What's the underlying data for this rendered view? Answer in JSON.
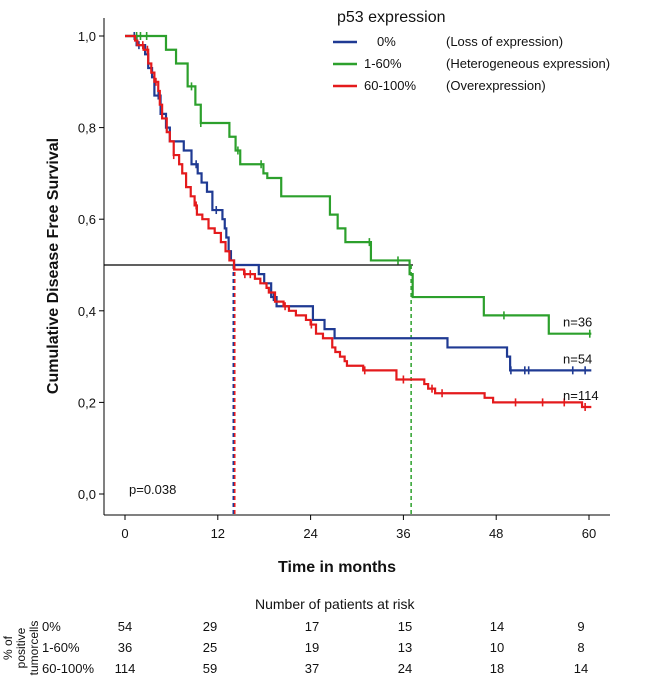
{
  "chart_data": {
    "type": "line",
    "subtype": "kaplan-meier-step",
    "ylabel": "Cumulative Disease Free Survival",
    "xlabel": "Time in months",
    "xlim": [
      0,
      60
    ],
    "ylim": [
      0,
      1
    ],
    "x_ticks": [
      0,
      12,
      24,
      36,
      48,
      60
    ],
    "y_ticks": [
      0,
      0.2,
      0.4,
      0.6,
      0.8,
      1.0
    ],
    "y_tick_labels": [
      "0,0",
      "0,2",
      "0,4",
      "0,6",
      "0,8",
      "1,0"
    ],
    "median_line_y": 0.5,
    "median_markers": [
      {
        "series": "0%",
        "x": 14
      },
      {
        "series": "60-100%",
        "x": 14
      },
      {
        "series": "1-60%",
        "x": 37
      }
    ],
    "p_value_text": "p=0.038",
    "legend": {
      "title": "p53 expression",
      "position": "top-right",
      "entries": [
        {
          "label": "0%",
          "description": "(Loss of expression)"
        },
        {
          "label": "1-60%",
          "description": "(Heterogeneous expression)"
        },
        {
          "label": "60-100%",
          "description": "(Overexpression)"
        }
      ]
    },
    "series": [
      {
        "name": "0%",
        "color": "#1f3a93",
        "end_label": "n=54",
        "steps": [
          [
            0,
            1.0
          ],
          [
            1.5,
            0.98
          ],
          [
            2.6,
            0.96
          ],
          [
            3.0,
            0.93
          ],
          [
            3.5,
            0.91
          ],
          [
            3.8,
            0.87
          ],
          [
            4.6,
            0.83
          ],
          [
            5.3,
            0.8
          ],
          [
            5.8,
            0.77
          ],
          [
            7.6,
            0.75
          ],
          [
            8.6,
            0.72
          ],
          [
            9.4,
            0.7
          ],
          [
            9.9,
            0.68
          ],
          [
            10.6,
            0.66
          ],
          [
            11.3,
            0.62
          ],
          [
            12.6,
            0.6
          ],
          [
            12.9,
            0.58
          ],
          [
            13.1,
            0.56
          ],
          [
            13.4,
            0.53
          ],
          [
            13.7,
            0.51
          ],
          [
            14.1,
            0.5
          ],
          [
            17.3,
            0.48
          ],
          [
            18.0,
            0.46
          ],
          [
            18.9,
            0.43
          ],
          [
            19.6,
            0.41
          ],
          [
            24.3,
            0.38
          ],
          [
            25.8,
            0.36
          ],
          [
            27.1,
            0.34
          ],
          [
            41.7,
            0.32
          ],
          [
            49.4,
            0.3
          ],
          [
            49.8,
            0.27
          ],
          [
            60.3,
            0.27
          ]
        ],
        "censor": [
          1.2,
          1.8,
          4.3,
          9.2,
          11.8,
          19.2,
          49.9,
          51.7,
          52.2,
          57.9,
          59.5
        ]
      },
      {
        "name": "1-60%",
        "color": "#2ca02c",
        "end_label": "n=36",
        "steps": [
          [
            0,
            1.0
          ],
          [
            5.3,
            0.97
          ],
          [
            6.6,
            0.94
          ],
          [
            8.1,
            0.89
          ],
          [
            9.1,
            0.85
          ],
          [
            9.8,
            0.81
          ],
          [
            13.5,
            0.78
          ],
          [
            14.3,
            0.75
          ],
          [
            14.9,
            0.72
          ],
          [
            17.9,
            0.7
          ],
          [
            18.4,
            0.69
          ],
          [
            20.2,
            0.65
          ],
          [
            26.5,
            0.61
          ],
          [
            27.5,
            0.58
          ],
          [
            28.5,
            0.55
          ],
          [
            31.8,
            0.51
          ],
          [
            36.8,
            0.48
          ],
          [
            37.2,
            0.43
          ],
          [
            46.4,
            0.39
          ],
          [
            54.8,
            0.35
          ],
          [
            60.3,
            0.35
          ]
        ],
        "censor": [
          1.5,
          2.0,
          2.8,
          8.6,
          9.8,
          14.6,
          17.6,
          31.6,
          35.3,
          49.0,
          60.1
        ]
      },
      {
        "name": "60-100%",
        "color": "#e41a1c",
        "end_label": "n=114",
        "steps": [
          [
            0,
            1.0
          ],
          [
            1.3,
            0.99
          ],
          [
            1.6,
            0.98
          ],
          [
            2.4,
            0.97
          ],
          [
            3.0,
            0.94
          ],
          [
            3.4,
            0.92
          ],
          [
            3.8,
            0.9
          ],
          [
            4.3,
            0.88
          ],
          [
            4.5,
            0.85
          ],
          [
            4.8,
            0.82
          ],
          [
            5.4,
            0.79
          ],
          [
            5.8,
            0.77
          ],
          [
            6.3,
            0.74
          ],
          [
            7.0,
            0.72
          ],
          [
            7.4,
            0.7
          ],
          [
            7.9,
            0.67
          ],
          [
            8.5,
            0.65
          ],
          [
            9.0,
            0.63
          ],
          [
            9.3,
            0.61
          ],
          [
            10.0,
            0.6
          ],
          [
            10.8,
            0.58
          ],
          [
            11.6,
            0.57
          ],
          [
            12.4,
            0.55
          ],
          [
            13.0,
            0.53
          ],
          [
            13.5,
            0.51
          ],
          [
            14.1,
            0.49
          ],
          [
            15.4,
            0.48
          ],
          [
            16.8,
            0.47
          ],
          [
            17.5,
            0.46
          ],
          [
            18.3,
            0.45
          ],
          [
            18.6,
            0.44
          ],
          [
            19.4,
            0.42
          ],
          [
            20.5,
            0.41
          ],
          [
            21.2,
            0.4
          ],
          [
            22.1,
            0.39
          ],
          [
            23.4,
            0.38
          ],
          [
            24.0,
            0.37
          ],
          [
            24.7,
            0.35
          ],
          [
            25.6,
            0.34
          ],
          [
            26.8,
            0.32
          ],
          [
            27.2,
            0.31
          ],
          [
            27.8,
            0.3
          ],
          [
            28.4,
            0.29
          ],
          [
            28.7,
            0.28
          ],
          [
            30.8,
            0.27
          ],
          [
            35.1,
            0.25
          ],
          [
            38.7,
            0.24
          ],
          [
            39.2,
            0.23
          ],
          [
            40.1,
            0.22
          ],
          [
            46.5,
            0.21
          ],
          [
            47.6,
            0.2
          ],
          [
            59.1,
            0.19
          ],
          [
            60.3,
            0.19
          ]
        ],
        "censor": [
          2.3,
          2.9,
          4.0,
          6.3,
          9.2,
          15.5,
          16.2,
          20.7,
          24.1,
          31.0,
          36.0,
          39.7,
          41.0,
          50.5,
          54.0,
          56.8,
          59.5
        ]
      }
    ],
    "risk_table": {
      "title": "Number of patients at risk",
      "side_label": "% of positive tumorcells",
      "times": [
        0,
        12,
        24,
        36,
        48,
        60
      ],
      "rows": [
        {
          "label": "0%",
          "values": [
            54,
            29,
            17,
            15,
            14,
            9
          ]
        },
        {
          "label": "1-60%",
          "values": [
            36,
            25,
            19,
            13,
            10,
            8
          ]
        },
        {
          "label": "60-100%",
          "values": [
            114,
            59,
            37,
            24,
            18,
            14
          ]
        }
      ]
    }
  }
}
